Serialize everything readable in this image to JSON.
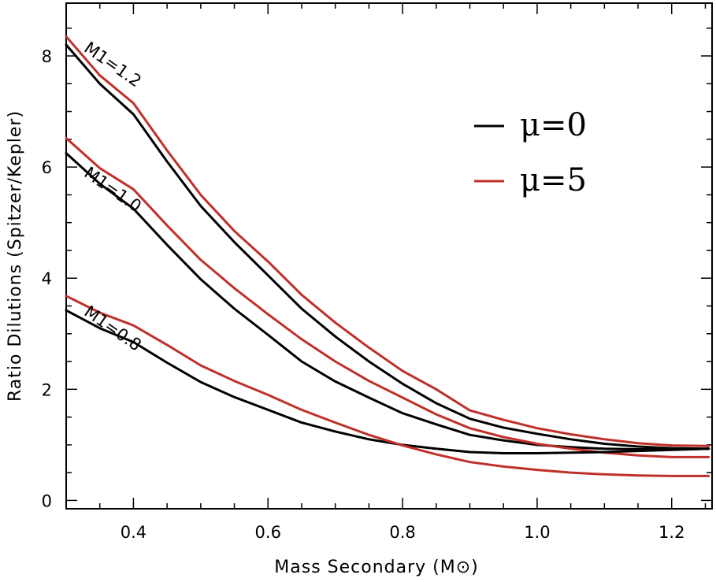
{
  "chart_data": {
    "type": "line",
    "title": "",
    "xlabel": "Mass Secondary (M⊙)",
    "ylabel": "Ratio Dilutions (Spitzer/Kepler)",
    "xlim": [
      0.3,
      1.26
    ],
    "ylim": [
      -0.15,
      8.95
    ],
    "xticks": [
      0.4,
      0.6,
      0.8,
      1.0,
      1.2
    ],
    "xtick_labels": [
      "0.4",
      "0.6",
      "0.8",
      "1.0",
      "1.2"
    ],
    "yticks": [
      0,
      2,
      4,
      6,
      8
    ],
    "ytick_labels": [
      "0",
      "2",
      "4",
      "6",
      "8"
    ],
    "grid": false,
    "legend": {
      "position": "top-right",
      "entries": [
        {
          "label": "μ=0",
          "color": "#000000"
        },
        {
          "label": "μ=5",
          "color": "#c0302a"
        }
      ]
    },
    "x": [
      0.3,
      0.35,
      0.4,
      0.45,
      0.5,
      0.55,
      0.6,
      0.65,
      0.7,
      0.75,
      0.8,
      0.85,
      0.9,
      0.95,
      1.0,
      1.05,
      1.1,
      1.15,
      1.2,
      1.255
    ],
    "series": [
      {
        "name": "M1=1.2, μ=0",
        "mu": "0",
        "color": "#000000",
        "values": [
          8.2,
          7.5,
          6.95,
          6.1,
          5.3,
          4.65,
          4.05,
          3.45,
          2.95,
          2.5,
          2.1,
          1.75,
          1.47,
          1.31,
          1.2,
          1.1,
          1.02,
          0.97,
          0.94,
          0.93
        ]
      },
      {
        "name": "M1=1.2, μ=5",
        "mu": "5",
        "color": "#c0302a",
        "values": [
          8.35,
          7.65,
          7.15,
          6.3,
          5.5,
          4.85,
          4.3,
          3.7,
          3.2,
          2.75,
          2.33,
          2.0,
          1.62,
          1.45,
          1.3,
          1.19,
          1.1,
          1.03,
          0.99,
          0.98
        ]
      },
      {
        "name": "M1=1.0, μ=0",
        "mu": "0",
        "color": "#000000",
        "values": [
          6.25,
          5.7,
          5.25,
          4.6,
          3.98,
          3.45,
          2.98,
          2.5,
          2.14,
          1.85,
          1.57,
          1.37,
          1.18,
          1.08,
          1.0,
          0.96,
          0.93,
          0.92,
          0.92,
          0.93
        ]
      },
      {
        "name": "M1=1.0, μ=5",
        "mu": "5",
        "color": "#c0302a",
        "values": [
          6.52,
          5.98,
          5.6,
          4.95,
          4.33,
          3.82,
          3.35,
          2.9,
          2.5,
          2.15,
          1.85,
          1.55,
          1.3,
          1.14,
          1.02,
          0.93,
          0.86,
          0.81,
          0.78,
          0.78
        ]
      },
      {
        "name": "M1=0.8, μ=0",
        "mu": "0",
        "color": "#000000",
        "values": [
          3.42,
          3.1,
          2.85,
          2.48,
          2.13,
          1.86,
          1.63,
          1.4,
          1.24,
          1.1,
          1.0,
          0.93,
          0.87,
          0.85,
          0.85,
          0.86,
          0.87,
          0.89,
          0.91,
          0.93
        ]
      },
      {
        "name": "M1=0.8, μ=5",
        "mu": "5",
        "color": "#c0302a",
        "values": [
          3.68,
          3.38,
          3.15,
          2.8,
          2.43,
          2.15,
          1.9,
          1.63,
          1.4,
          1.18,
          0.99,
          0.83,
          0.69,
          0.61,
          0.55,
          0.5,
          0.47,
          0.45,
          0.44,
          0.44
        ]
      }
    ],
    "annotations": [
      {
        "text": "M1=1.2",
        "x": 0.325,
        "y": 8.1,
        "rotation": 35
      },
      {
        "text": "M1=1.0",
        "x": 0.325,
        "y": 5.85,
        "rotation": 35
      },
      {
        "text": "M1=0.8",
        "x": 0.325,
        "y": 3.35,
        "rotation": 35
      }
    ]
  }
}
